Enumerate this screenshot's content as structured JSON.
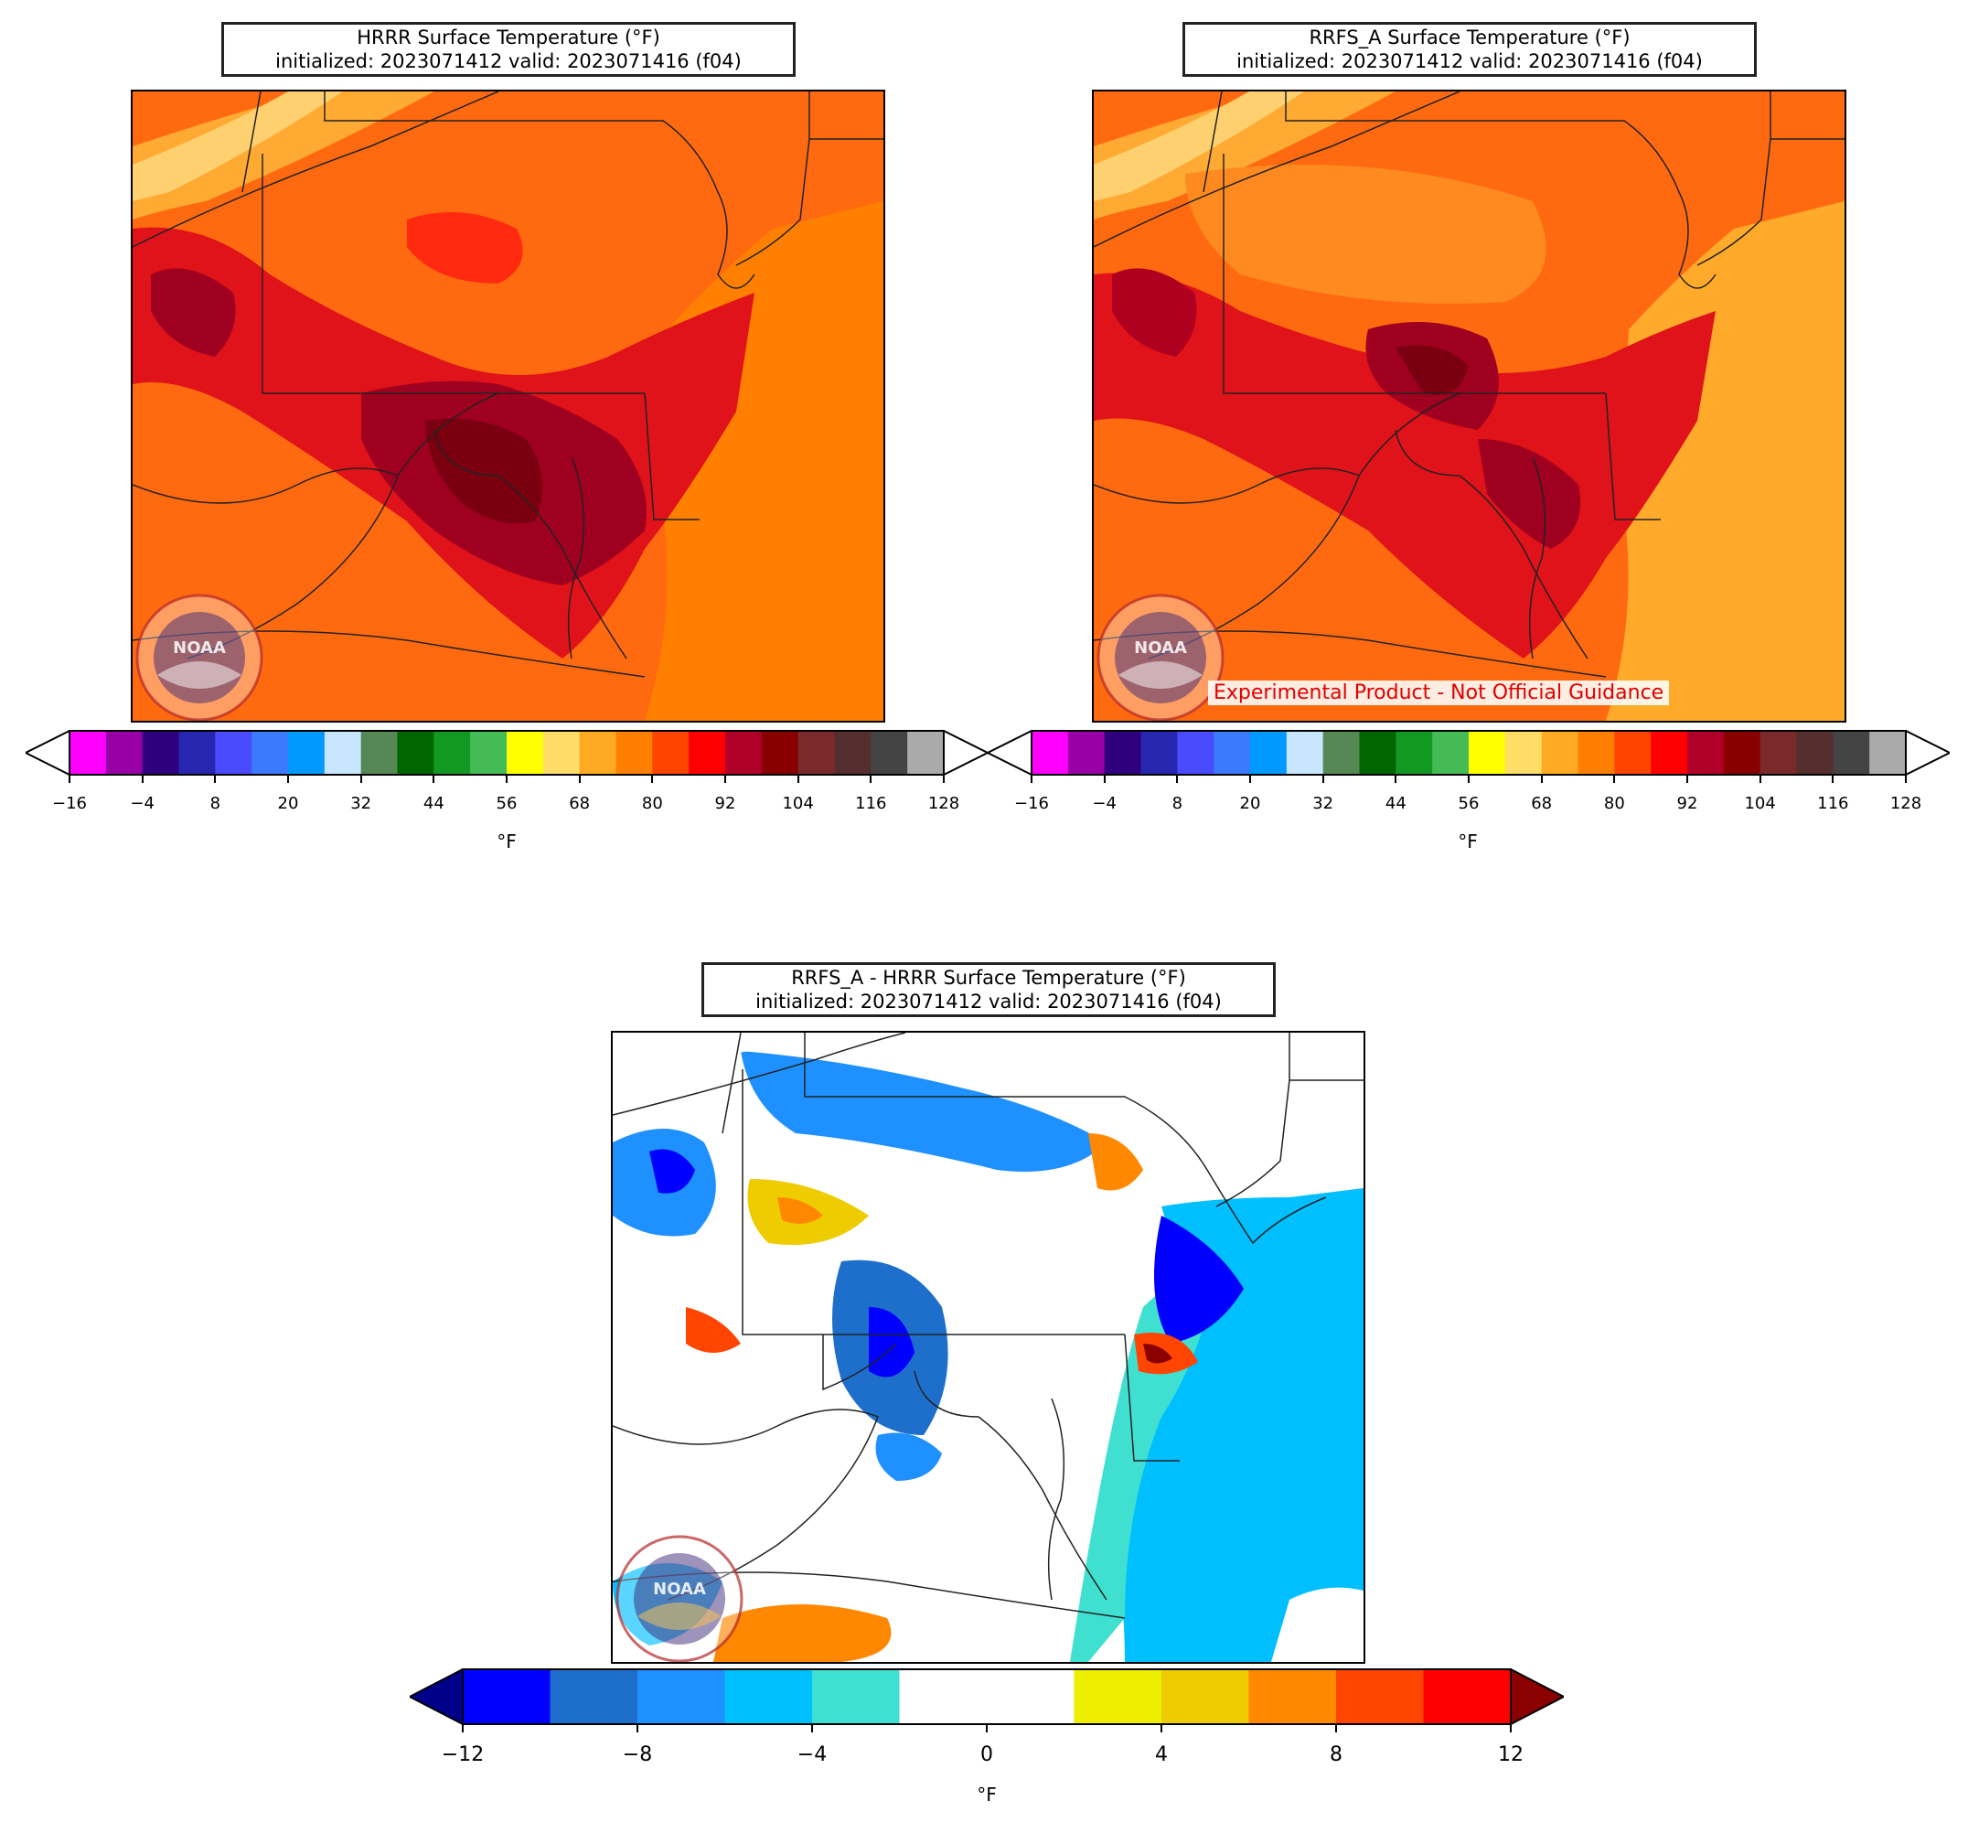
{
  "panels": {
    "hrrr": {
      "title_line1": "HRRR Surface Temperature (°F)",
      "title_line2": "initialized: 2023071412 valid: 2023071416 (f04)"
    },
    "rrfs": {
      "title_line1": "RRFS_A Surface Temperature (°F)",
      "title_line2": "initialized: 2023071412 valid: 2023071416 (f04)",
      "disclaimer": "Experimental Product - Not Official Guidance"
    },
    "diff": {
      "title_line1": "RRFS_A - HRRR Surface Temperature (°F)",
      "title_line2": "initialized: 2023071412 valid: 2023071416 (f04)"
    }
  },
  "logo_text": "NOAA",
  "temp_colorbar": {
    "unit": "°F",
    "ticks": [
      "−16",
      "−4",
      "8",
      "20",
      "32",
      "44",
      "56",
      "68",
      "80",
      "92",
      "104",
      "116",
      "128"
    ],
    "colors": [
      "#ff00ff",
      "#9900a6",
      "#2e0080",
      "#2626b0",
      "#4a4aff",
      "#3a7aff",
      "#0099ff",
      "#c8e6ff",
      "#558855",
      "#006600",
      "#119922",
      "#44bb55",
      "#ffff00",
      "#ffdd66",
      "#ffaa22",
      "#ff7f00",
      "#ff4400",
      "#ff0000",
      "#b0002a",
      "#880000",
      "#7a2a2a",
      "#552f2f",
      "#444444",
      "#aaaaaa"
    ],
    "extend_low": "#ffffff",
    "extend_high": "#ffffff"
  },
  "diff_colorbar": {
    "unit": "°F",
    "ticks": [
      "−12",
      "−8",
      "−4",
      "0",
      "4",
      "8",
      "12"
    ],
    "colors": [
      "#0000ff",
      "#1e6fcc",
      "#1e90ff",
      "#00bfff",
      "#40e0d0",
      "#ffffff",
      "#ffffff",
      "#eeee00",
      "#eecc00",
      "#ff8800",
      "#ff4500",
      "#ff0000"
    ],
    "extend_low": "#00008b",
    "extend_high": "#8b0000"
  }
}
